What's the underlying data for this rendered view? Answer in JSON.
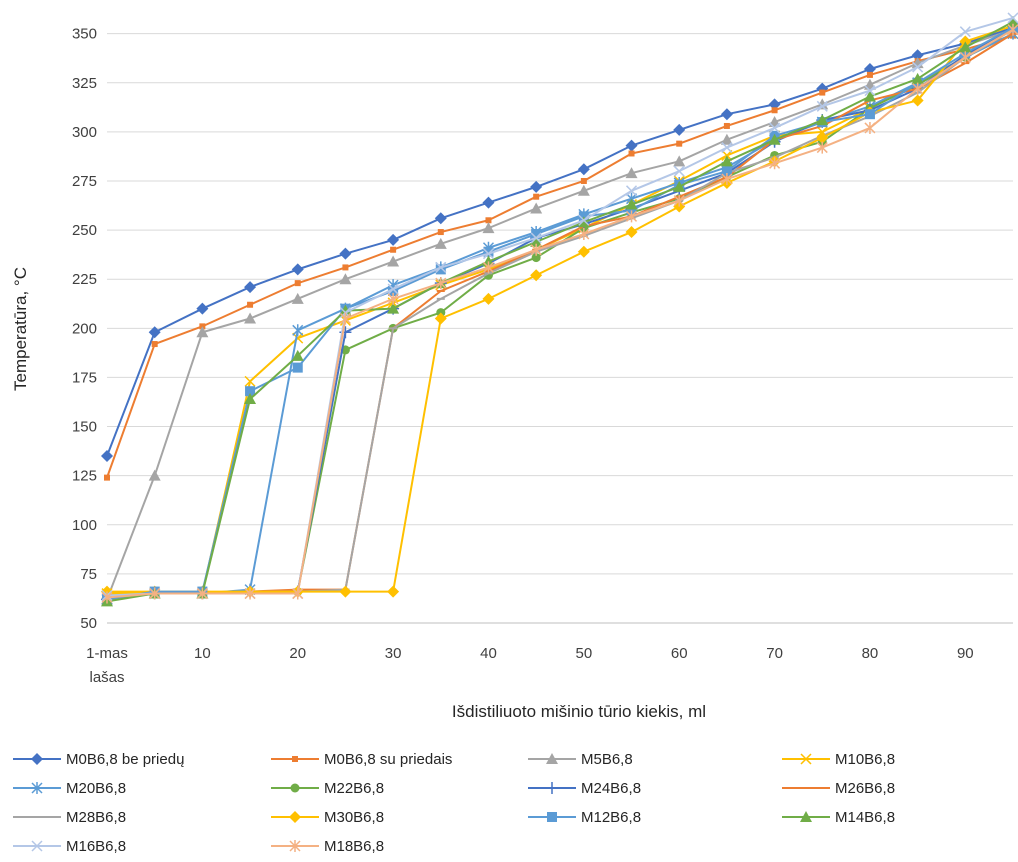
{
  "chart_data": {
    "type": "line",
    "xlabel": "Išdistiliuoto mišinio tūrio kiekis, ml",
    "ylabel": "Temperatūra, °C",
    "ylim": [
      50,
      360
    ],
    "yticks": [
      50,
      75,
      100,
      125,
      150,
      175,
      200,
      225,
      250,
      275,
      300,
      325,
      350
    ],
    "categories": [
      "1-mas lašas",
      "5",
      "10",
      "15",
      "20",
      "25",
      "30",
      "35",
      "40",
      "45",
      "50",
      "55",
      "60",
      "65",
      "70",
      "75",
      "80",
      "85",
      "90",
      "95"
    ],
    "xtick_labels": [
      {
        "index": 0,
        "lines": [
          "1-mas",
          "lašas"
        ]
      },
      {
        "index": 2,
        "lines": [
          "10"
        ]
      },
      {
        "index": 4,
        "lines": [
          "20"
        ]
      },
      {
        "index": 6,
        "lines": [
          "30"
        ]
      },
      {
        "index": 8,
        "lines": [
          "40"
        ]
      },
      {
        "index": 10,
        "lines": [
          "50"
        ]
      },
      {
        "index": 12,
        "lines": [
          "60"
        ]
      },
      {
        "index": 14,
        "lines": [
          "70"
        ]
      },
      {
        "index": 16,
        "lines": [
          "80"
        ]
      },
      {
        "index": 18,
        "lines": [
          "90"
        ]
      }
    ],
    "grid": true,
    "legend_position": "bottom",
    "series": [
      {
        "name": "M0B6,8 be priedų",
        "color": "#4472C4",
        "marker": "diamond",
        "values": [
          135,
          198,
          210,
          221,
          230,
          238,
          245,
          256,
          264,
          272,
          281,
          293,
          301,
          309,
          314,
          322,
          332,
          339,
          345,
          353
        ]
      },
      {
        "name": "M0B6,8 su priedais",
        "color": "#ED7D31",
        "marker": "square-small",
        "values": [
          124,
          192,
          201,
          212,
          223,
          231,
          240,
          249,
          255,
          267,
          275,
          289,
          294,
          303,
          311,
          320,
          329,
          336,
          342,
          349
        ]
      },
      {
        "name": "M5B6,8",
        "color": "#A5A5A5",
        "marker": "triangle",
        "values": [
          62,
          125,
          198,
          205,
          215,
          225,
          234,
          243,
          251,
          261,
          270,
          279,
          285,
          296,
          305,
          314,
          324,
          335,
          344,
          352
        ]
      },
      {
        "name": "M10B6,8",
        "color": "#FFC000",
        "marker": "x",
        "values": [
          65,
          65,
          65,
          173,
          195,
          204,
          213,
          222,
          230,
          240,
          251,
          263,
          275,
          288,
          298,
          300,
          312,
          325,
          338,
          350
        ]
      },
      {
        "name": "M20B6,8",
        "color": "#5B9BD5",
        "marker": "star",
        "values": [
          62,
          65,
          65,
          67,
          199,
          210,
          222,
          231,
          241,
          249,
          258,
          266,
          274,
          282,
          296,
          305,
          313,
          325,
          338,
          350
        ]
      },
      {
        "name": "M22B6,8",
        "color": "#70AD47",
        "marker": "circle",
        "values": [
          62,
          65,
          65,
          66,
          66,
          189,
          200,
          208,
          227,
          236,
          251,
          259,
          266,
          277,
          288,
          295,
          312,
          324,
          338,
          353
        ]
      },
      {
        "name": "M24B6,8",
        "color": "#4472C4",
        "marker": "plus",
        "values": [
          62,
          65,
          65,
          66,
          66,
          198,
          210,
          223,
          233,
          246,
          253,
          261,
          270,
          279,
          295,
          306,
          311,
          322,
          339,
          353
        ]
      },
      {
        "name": "M26B6,8",
        "color": "#ED7D31",
        "marker": "dash",
        "values": [
          62,
          65,
          65,
          66,
          67,
          67,
          200,
          219,
          229,
          240,
          252,
          257,
          267,
          277,
          296,
          303,
          316,
          322,
          335,
          350
        ]
      },
      {
        "name": "M28B6,8",
        "color": "#A5A5A5",
        "marker": "dash",
        "values": [
          62,
          65,
          65,
          66,
          66,
          67,
          200,
          215,
          228,
          239,
          247,
          256,
          265,
          279,
          287,
          298,
          308,
          320,
          338,
          352
        ]
      },
      {
        "name": "M30B6,8",
        "color": "#FFC000",
        "marker": "diamond",
        "values": [
          66,
          66,
          66,
          66,
          66,
          66,
          66,
          205,
          215,
          227,
          239,
          249,
          262,
          274,
          285,
          297,
          310,
          316,
          346,
          354
        ]
      },
      {
        "name": "M12B6,8",
        "color": "#5B9BD5",
        "marker": "square",
        "values": [
          62,
          66,
          66,
          168,
          180,
          210,
          219,
          230,
          239,
          248,
          257,
          260,
          273,
          280,
          298,
          305,
          309,
          325,
          340,
          353
        ]
      },
      {
        "name": "M14B6,8",
        "color": "#70AD47",
        "marker": "triangle",
        "values": [
          61,
          65,
          65,
          164,
          186,
          209,
          210,
          223,
          234,
          244,
          254,
          263,
          272,
          285,
          296,
          306,
          318,
          327,
          343,
          356
        ]
      },
      {
        "name": "M16B6,8",
        "color": "#B4C7E7",
        "marker": "x",
        "values": [
          64,
          65,
          65,
          65,
          65,
          208,
          220,
          231,
          238,
          246,
          255,
          270,
          280,
          292,
          302,
          313,
          321,
          333,
          351,
          358
        ]
      },
      {
        "name": "M18B6,8",
        "color": "#F4B183",
        "marker": "star",
        "values": [
          63,
          65,
          65,
          65,
          65,
          205,
          215,
          223,
          231,
          240,
          248,
          257,
          265,
          276,
          284,
          292,
          302,
          322,
          338,
          352
        ]
      }
    ]
  }
}
